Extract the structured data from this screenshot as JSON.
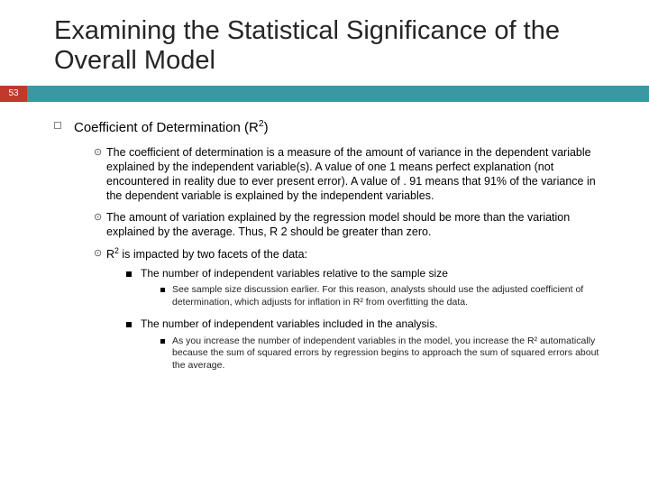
{
  "page_number": "53",
  "colors": {
    "accent_bar": "#3a98a3",
    "page_badge": "#c0392b",
    "background": "#ffffff",
    "text": "#000000"
  },
  "title": "Examining the Statistical Significance of the Overall Model",
  "heading_prefix": "Coefficient of Determination (R",
  "heading_sup": "2",
  "heading_suffix": ")",
  "b1": "The coefficient of determination is a measure of the amount of variance in the dependent variable explained by the independent variable(s). A value of one 1 means perfect explanation (not encountered in reality due to ever present error).  A value of . 91 means that 91% of the variance in the dependent variable is explained by the independent variables.",
  "b2": "The amount of variation explained by the regression model should be more than the variation explained by the average.  Thus, R 2 should be greater than zero.",
  "b3_prefix": "R",
  "b3_sup": "2",
  "b3_suffix": " is impacted by two facets of the data:",
  "s1": "The number of independent variables relative to the sample size",
  "s1a": "See sample size discussion earlier. For this reason, analysts should use the adjusted coefficient of determination, which adjusts for inflation in R² from overfitting the data.",
  "s2": "The number of independent variables included in the analysis.",
  "s2a": "As you increase the number of independent variables in the model, you increase the R² automatically because the sum of squared errors by regression begins to approach the sum of squared errors about the average."
}
